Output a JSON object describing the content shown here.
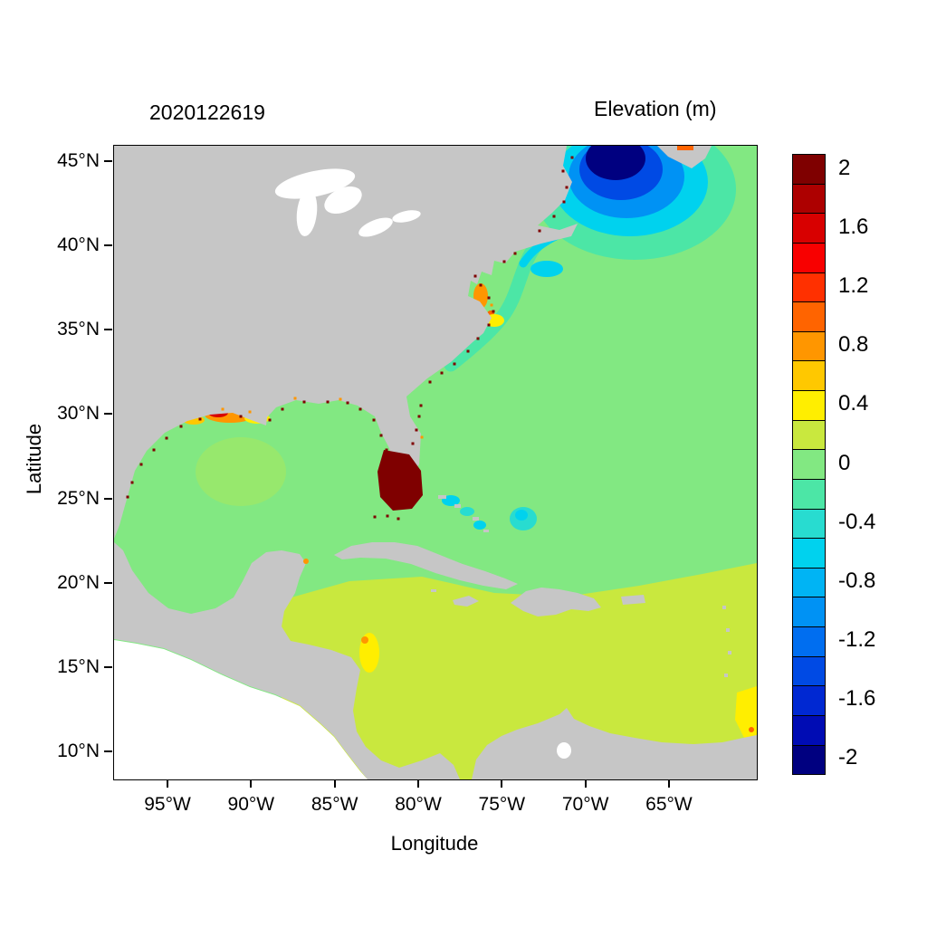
{
  "header": {
    "run_id": "2020122619",
    "colorbar_title": "Elevation (m)"
  },
  "axes": {
    "x_label": "Longitude",
    "y_label": "Latitude",
    "x_tick_labels": [
      "95°W",
      "90°W",
      "85°W",
      "80°W",
      "75°W",
      "70°W",
      "65°W"
    ],
    "y_tick_labels": [
      "45°N",
      "40°N",
      "35°N",
      "30°N",
      "25°N",
      "20°N",
      "15°N",
      "10°N"
    ]
  },
  "colorbar": {
    "tick_labels": [
      "2",
      "1.6",
      "1.2",
      "0.8",
      "0.4",
      "0",
      "-0.4",
      "-0.8",
      "-1.2",
      "-1.6",
      "-2"
    ],
    "colors_top_to_bottom": [
      "#7f0000",
      "#ad0000",
      "#d80000",
      "#f80000",
      "#ff3000",
      "#ff6400",
      "#ff9600",
      "#ffc800",
      "#ffee00",
      "#c9e83e",
      "#82e882",
      "#4ce6a6",
      "#28dcd0",
      "#00d2ee",
      "#00b4f4",
      "#0092f4",
      "#006ef0",
      "#004ae4",
      "#0028d2",
      "#000cb4",
      "#000080"
    ]
  },
  "map": {
    "land_color": "#c6c6c6",
    "background_color": "#ffffff",
    "ocean_base_color": "#82e882",
    "caribbean_color": "#c9e83e",
    "lake_color": "#ffffff"
  },
  "chart_data": {
    "type": "heatmap",
    "title": "2020122619",
    "colorbar_title": "Elevation (m)",
    "xlabel": "Longitude",
    "ylabel": "Latitude",
    "x_tick_labels": [
      "95°W",
      "90°W",
      "85°W",
      "80°W",
      "75°W",
      "70°W",
      "65°W"
    ],
    "y_tick_labels": [
      "45°N",
      "40°N",
      "35°N",
      "30°N",
      "25°N",
      "20°N",
      "15°N",
      "10°N"
    ],
    "x_range": [
      "98°W",
      "60°W"
    ],
    "y_range": [
      "8°N",
      "46°N"
    ],
    "value_ticks": [
      2,
      1.6,
      1.2,
      0.8,
      0.4,
      0,
      -0.4,
      -0.8,
      -1.2,
      -1.6,
      -2
    ],
    "value_range": [
      -2.1,
      2.1
    ],
    "level_step": 0.2,
    "palette_top_to_bottom": [
      "#7f0000",
      "#ad0000",
      "#d80000",
      "#f80000",
      "#ff3000",
      "#ff6400",
      "#ff9600",
      "#ffc800",
      "#ffee00",
      "#c9e83e",
      "#82e882",
      "#4ce6a6",
      "#28dcd0",
      "#00d2ee",
      "#00b4f4",
      "#0092f4",
      "#006ef0",
      "#004ae4",
      "#0028d2",
      "#000cb4",
      "#000080"
    ],
    "legend_position": "right",
    "grid": false,
    "field_summary": [
      {
        "region": "Open Atlantic (most of domain)",
        "elevation_m": 0.0
      },
      {
        "region": "Gulf of Mexico",
        "elevation_m": 0.1
      },
      {
        "region": "Caribbean Sea and tropical Atlantic south of ~20°N",
        "elevation_m": 0.3
      },
      {
        "region": "Gulf of Maine / Bay of Fundy (~70°W, 43–45°N)",
        "elevation_m": -2.0
      },
      {
        "region": "Shelf water along US east coast (Carolinas to Nova Scotia)",
        "elevation_m": -0.4
      },
      {
        "region": "South Florida / Florida Bay (~81°W, 25–27°N)",
        "elevation_m": 2.0
      },
      {
        "region": "Louisiana–Texas coast (~90–93°W, 29–30°N)",
        "elevation_m": 0.8
      },
      {
        "region": "Chesapeake Bay / Pamlico Sound",
        "elevation_m": 0.7
      },
      {
        "region": "Honduras–Nicaragua coast (~83°W, 13–16°N)",
        "elevation_m": 0.5
      },
      {
        "region": "Eastern domain edge (~60°W, 9–13°N)",
        "elevation_m": 0.5
      },
      {
        "region": "Scattered coastal grid cells along Gulf and Atlantic coasts",
        "elevation_m": 2.0
      },
      {
        "region": "Land and Pacific areas (no data)",
        "elevation_m": null
      }
    ]
  }
}
